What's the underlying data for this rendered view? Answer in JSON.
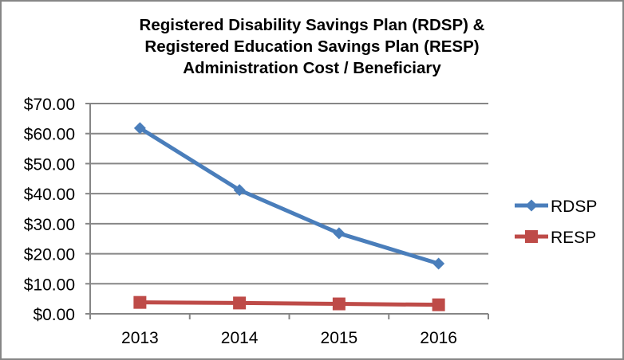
{
  "chart_data": {
    "type": "line",
    "title": [
      "Registered Disability Savings Plan (RDSP) &",
      "Registered Education Savings Plan (RESP)",
      "Administration Cost / Beneficiary"
    ],
    "xlabel": "",
    "ylabel": "",
    "categories": [
      "2013",
      "2014",
      "2015",
      "2016"
    ],
    "ylim": [
      0,
      70
    ],
    "yticks": [
      0,
      10,
      20,
      30,
      40,
      50,
      60,
      70
    ],
    "ytick_labels": [
      "$0.00",
      "$10.00",
      "$20.00",
      "$30.00",
      "$40.00",
      "$50.00",
      "$60.00",
      "$70.00"
    ],
    "grid": true,
    "legend_position": "right",
    "series": [
      {
        "name": "RDSP",
        "values": [
          61.8,
          41.2,
          26.8,
          16.7
        ],
        "color": "#4a7ebb",
        "marker": "diamond"
      },
      {
        "name": "RESP",
        "values": [
          3.8,
          3.6,
          3.3,
          3.0
        ],
        "color": "#be4b48",
        "marker": "square"
      }
    ]
  }
}
